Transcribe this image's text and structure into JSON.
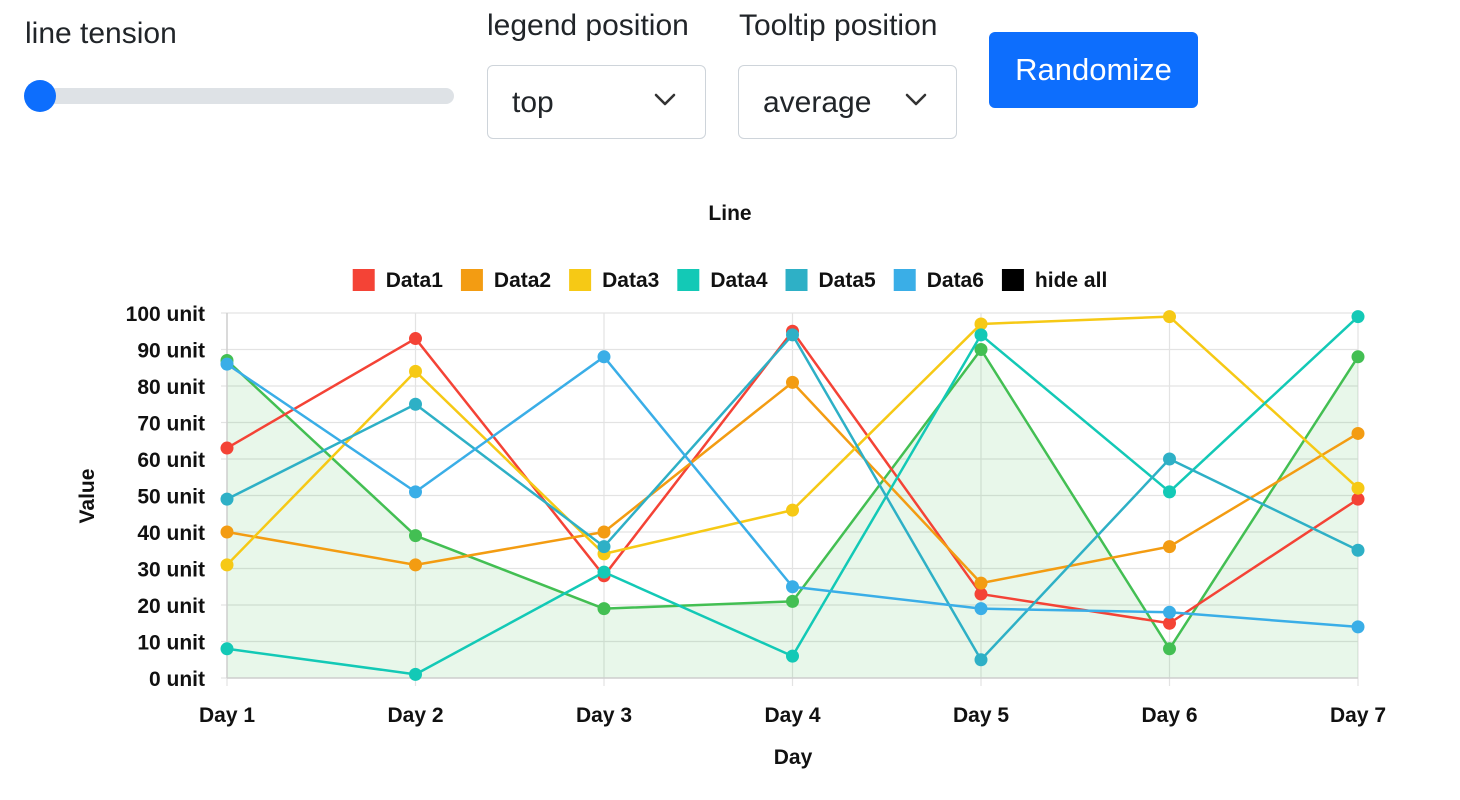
{
  "controls": {
    "line_tension": {
      "label": "line tension",
      "value": 0,
      "min": 0,
      "max": 1
    },
    "legend_position": {
      "label": "legend position",
      "selected": "top"
    },
    "tooltip_position": {
      "label": "Tooltip position",
      "selected": "average"
    },
    "randomize_label": "Randomize"
  },
  "colors": {
    "accent": "#0d6efd",
    "grid": "#e3e3e3",
    "axis": "#cfcfcf",
    "fill": "rgba(67,191,83,0.12)"
  },
  "chart_data": {
    "type": "line",
    "title": "Line",
    "xlabel": "Day",
    "ylabel": "Value",
    "categories": [
      "Day 1",
      "Day 2",
      "Day 3",
      "Day 4",
      "Day 5",
      "Day 6",
      "Day 7"
    ],
    "ylim": [
      0,
      100
    ],
    "yticks": [
      0,
      10,
      20,
      30,
      40,
      50,
      60,
      70,
      80,
      90,
      100
    ],
    "ytick_labels": [
      "0 unit",
      "10 unit",
      "20 unit",
      "30 unit",
      "40 unit",
      "50 unit",
      "60 unit",
      "70 unit",
      "80 unit",
      "90 unit",
      "100 unit"
    ],
    "grid": true,
    "legend_position": "top",
    "legend_extra": "hide all",
    "legend_extra_color": "#000000",
    "filled_series": {
      "values": [
        87,
        39,
        19,
        21,
        90,
        8,
        88
      ],
      "color": "#43bf53"
    },
    "series": [
      {
        "name": "Data1",
        "color": "#f44336",
        "values": [
          63,
          93,
          28,
          95,
          23,
          15,
          49
        ]
      },
      {
        "name": "Data2",
        "color": "#f39c12",
        "values": [
          40,
          31,
          40,
          81,
          26,
          36,
          67
        ]
      },
      {
        "name": "Data3",
        "color": "#f6c915",
        "values": [
          31,
          84,
          34,
          46,
          97,
          99,
          52
        ]
      },
      {
        "name": "Data4",
        "color": "#13c9b6",
        "values": [
          8,
          1,
          29,
          6,
          94,
          51,
          99
        ]
      },
      {
        "name": "Data5",
        "color": "#2eb0c6",
        "values": [
          49,
          75,
          36,
          94,
          5,
          60,
          35
        ]
      },
      {
        "name": "Data6",
        "color": "#3aaee7",
        "values": [
          86,
          51,
          88,
          25,
          19,
          18,
          14
        ]
      }
    ]
  }
}
